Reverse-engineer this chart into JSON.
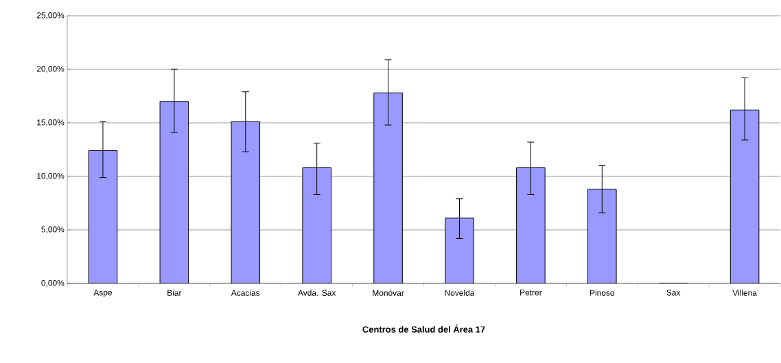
{
  "chart_data": {
    "type": "bar",
    "xlabel": "Centros de Salud del Área 17",
    "categories": [
      "Aspe",
      "Biar",
      "Acacias",
      "Avda. Sax",
      "Monóvar",
      "Novelda",
      "Petrer",
      "Pinoso",
      "Sax",
      "Villena"
    ],
    "values": [
      12.4,
      17.0,
      15.1,
      10.8,
      17.8,
      6.1,
      10.8,
      8.8,
      0,
      16.2
    ],
    "errors": [
      [
        9.9,
        15.1
      ],
      [
        14.1,
        20.0
      ],
      [
        12.3,
        17.9
      ],
      [
        8.3,
        13.1
      ],
      [
        14.8,
        20.9
      ],
      [
        4.2,
        7.9
      ],
      [
        8.3,
        13.2
      ],
      [
        6.6,
        11.0
      ],
      null,
      [
        13.4,
        19.2
      ]
    ],
    "color": "#9999ff",
    "ylim": [
      0,
      25
    ],
    "yticks": [
      {
        "value": 0,
        "label": "0,00%"
      },
      {
        "value": 5,
        "label": "5,00%"
      },
      {
        "value": 10,
        "label": "10,00%"
      },
      {
        "value": 15,
        "label": "15,00%"
      },
      {
        "value": 20,
        "label": "20,00%"
      },
      {
        "value": 25,
        "label": "25,00%"
      }
    ],
    "grid": "y"
  }
}
